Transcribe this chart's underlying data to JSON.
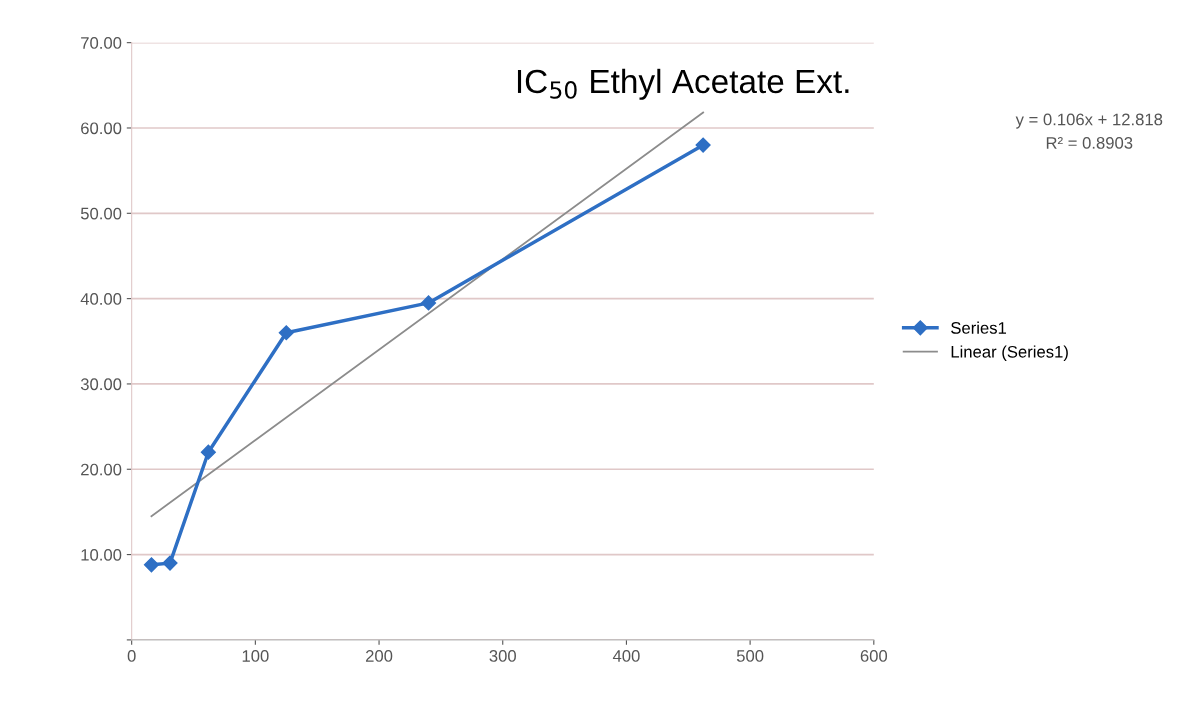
{
  "chart_data": {
    "type": "line",
    "title": "IC$_{50}$ Ethyl Acetate Ext.",
    "series": [
      {
        "name": "Series1",
        "color": "#2e6fc4",
        "x": [
          16,
          31,
          62,
          125,
          240,
          462
        ],
        "values": [
          8.8,
          9.0,
          22.0,
          36.0,
          39.5,
          58.0
        ],
        "marker": "diamond"
      },
      {
        "name": "Linear (Series1)",
        "color": "#8c8c8c",
        "x": [
          16,
          462
        ],
        "values": [
          14.5,
          61.8
        ],
        "marker": "none"
      }
    ],
    "annotations": [
      "y = 0.106x + 12.818",
      "R² = 0.8903"
    ],
    "xlim": [
      0,
      600
    ],
    "xticks": [
      0,
      100,
      200,
      300,
      400,
      500,
      600
    ],
    "ylim": [
      0,
      70
    ],
    "yticks": [
      {
        "value": 0,
        "label": null
      },
      {
        "value": 10,
        "label": "10.00"
      },
      {
        "value": 20,
        "label": "20.00"
      },
      {
        "value": 30,
        "label": "30.00"
      },
      {
        "value": 40,
        "label": "40.00"
      },
      {
        "value": 50,
        "label": "50.00"
      },
      {
        "value": 60,
        "label": "60.00"
      },
      {
        "value": 70,
        "label": "70.00"
      }
    ],
    "grid": "y",
    "legend": "right",
    "line_style": "solid"
  }
}
